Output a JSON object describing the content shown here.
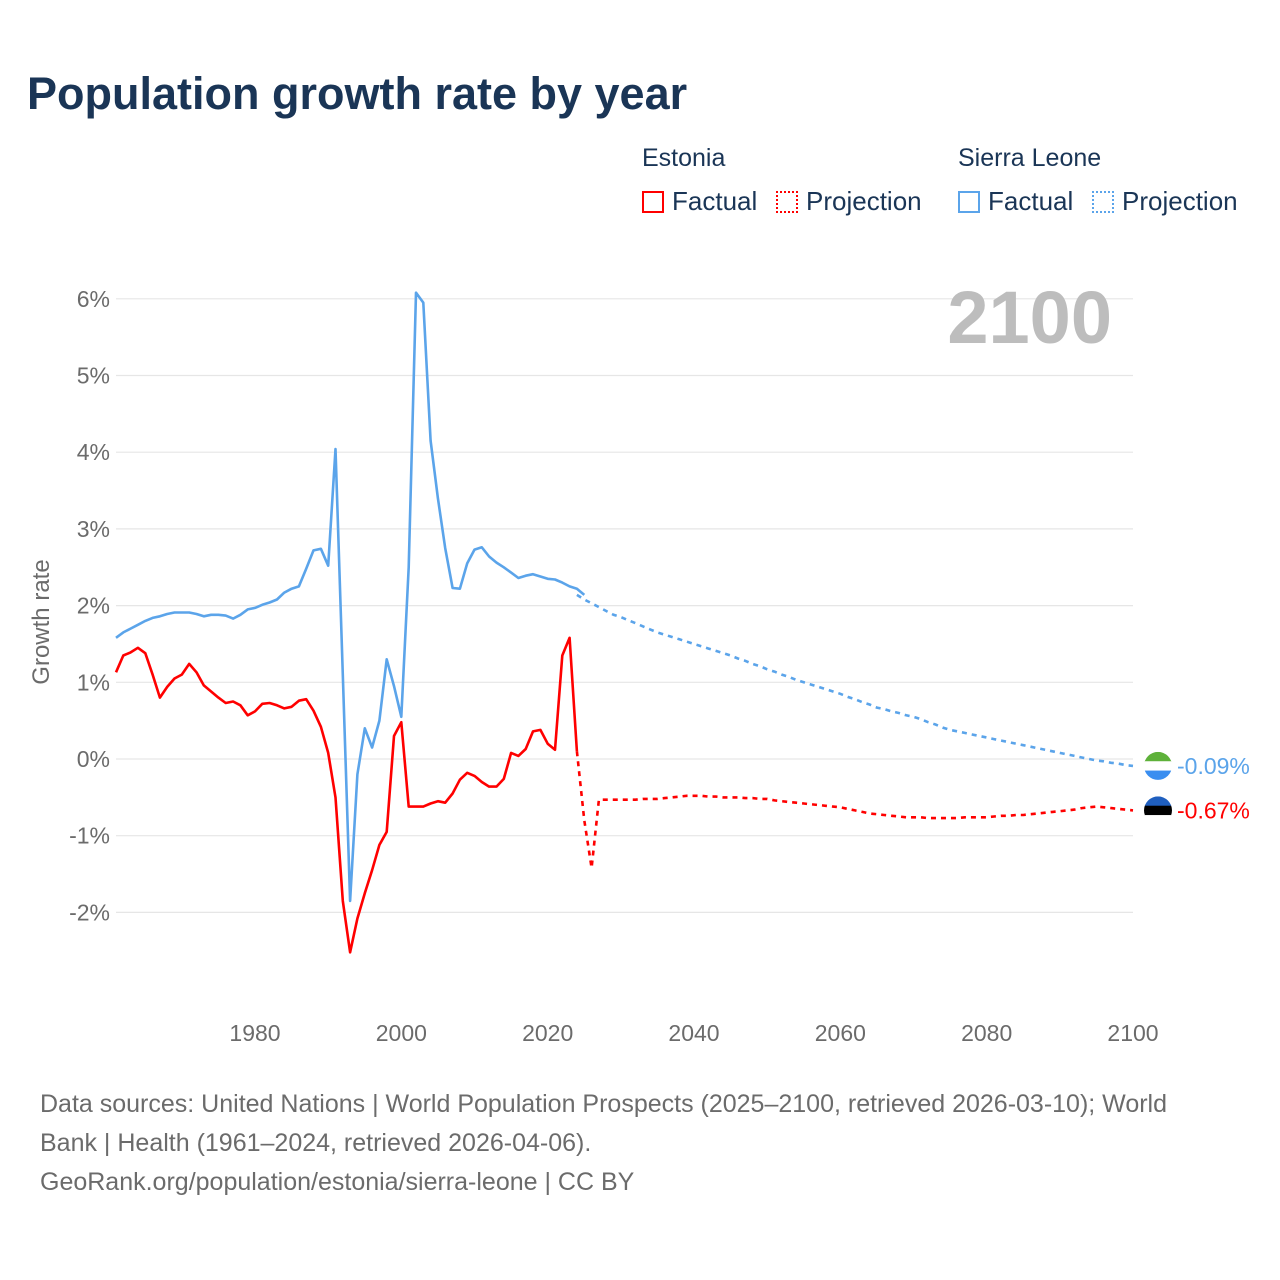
{
  "title": "Population growth rate by year",
  "legend": {
    "groups": [
      {
        "name": "Estonia",
        "color": "#ff0000",
        "factual_label": "Factual",
        "projection_label": "Projection"
      },
      {
        "name": "Sierra Leone",
        "color": "#5ba4ea",
        "factual_label": "Factual",
        "projection_label": "Projection"
      }
    ]
  },
  "chart_data": {
    "type": "line",
    "title": "Population growth rate by year",
    "ylabel": "Growth rate",
    "xlabel": "",
    "current_year_label": "2100",
    "xlim": [
      1961,
      2100
    ],
    "ylim": [
      -3,
      6.5
    ],
    "x_ticks": [
      1980,
      2000,
      2020,
      2040,
      2060,
      2080,
      2100
    ],
    "x_tick_labels": [
      "1980",
      "2000",
      "2020",
      "2040",
      "2060",
      "2080",
      "2100"
    ],
    "y_ticks": [
      -2,
      -1,
      0,
      1,
      2,
      3,
      4,
      5,
      6
    ],
    "y_tick_labels": [
      "-2%",
      "-1%",
      "0%",
      "1%",
      "2%",
      "3%",
      "4%",
      "5%",
      "6%"
    ],
    "grid": true,
    "series": [
      {
        "name": "Sierra Leone",
        "color": "#5ba4ea",
        "end_label": "-0.09%",
        "flag": [
          "#5eb13a",
          "#ffffff",
          "#3a8ef0"
        ],
        "factual_start": 1961,
        "factual": [
          1.58,
          1.65,
          1.7,
          1.75,
          1.8,
          1.84,
          1.86,
          1.89,
          1.91,
          1.91,
          1.91,
          1.89,
          1.86,
          1.88,
          1.88,
          1.87,
          1.83,
          1.88,
          1.95,
          1.97,
          2.01,
          2.04,
          2.08,
          2.17,
          2.22,
          2.25,
          2.48,
          2.72,
          2.74,
          2.52,
          4.04,
          1.1,
          -1.85,
          -0.2,
          0.4,
          0.15,
          0.5,
          1.3,
          0.95,
          0.55,
          2.5,
          6.08,
          5.95,
          4.15,
          3.4,
          2.75,
          2.23,
          2.22,
          2.55,
          2.73,
          2.76,
          2.64,
          2.56,
          2.5,
          2.43,
          2.36,
          2.39,
          2.41,
          2.38,
          2.35,
          2.34,
          2.3,
          2.25,
          2.22,
          2.14
        ],
        "projection_start": 2024,
        "projection": [
          2.14,
          2.08,
          2.03,
          1.98,
          1.93,
          1.88,
          1.85,
          1.81,
          1.77,
          1.73,
          1.69,
          1.65,
          1.62,
          1.59,
          1.56,
          1.53,
          1.5,
          1.47,
          1.44,
          1.41,
          1.38,
          1.35,
          1.31,
          1.28,
          1.24,
          1.21,
          1.17,
          1.14,
          1.1,
          1.07,
          1.03,
          1.0,
          0.97,
          0.94,
          0.91,
          0.88,
          0.85,
          0.81,
          0.78,
          0.74,
          0.71,
          0.67,
          0.65,
          0.62,
          0.6,
          0.57,
          0.55,
          0.52,
          0.48,
          0.45,
          0.41,
          0.38,
          0.36,
          0.34,
          0.32,
          0.3,
          0.28,
          0.26,
          0.24,
          0.22,
          0.2,
          0.18,
          0.16,
          0.14,
          0.12,
          0.1,
          0.08,
          0.06,
          0.04,
          0.02,
          0.0,
          -0.02,
          -0.03,
          -0.05,
          -0.06,
          -0.08,
          -0.09
        ]
      },
      {
        "name": "Estonia",
        "color": "#ff0000",
        "end_label": "-0.67%",
        "flag": [
          "#1f5fbf",
          "#000000",
          "#ffffff"
        ],
        "factual_start": 1961,
        "factual": [
          1.13,
          1.35,
          1.39,
          1.45,
          1.38,
          1.1,
          0.8,
          0.94,
          1.05,
          1.1,
          1.24,
          1.13,
          0.96,
          0.88,
          0.8,
          0.73,
          0.75,
          0.7,
          0.57,
          0.62,
          0.72,
          0.73,
          0.7,
          0.66,
          0.68,
          0.76,
          0.78,
          0.63,
          0.42,
          0.08,
          -0.5,
          -1.85,
          -2.52,
          -2.08,
          -1.75,
          -1.45,
          -1.12,
          -0.95,
          0.3,
          0.48,
          -0.62,
          -0.62,
          -0.62,
          -0.58,
          -0.55,
          -0.57,
          -0.45,
          -0.27,
          -0.18,
          -0.22,
          -0.3,
          -0.36,
          -0.36,
          -0.26,
          0.08,
          0.04,
          0.13,
          0.36,
          0.38,
          0.2,
          0.12,
          1.35,
          1.58,
          0.1
        ],
        "projection_start": 2024,
        "projection": [
          0.1,
          -0.8,
          -1.42,
          -0.53,
          -0.53,
          -0.53,
          -0.53,
          -0.53,
          -0.53,
          -0.52,
          -0.52,
          -0.52,
          -0.51,
          -0.5,
          -0.49,
          -0.48,
          -0.48,
          -0.48,
          -0.49,
          -0.49,
          -0.5,
          -0.5,
          -0.5,
          -0.51,
          -0.51,
          -0.52,
          -0.52,
          -0.54,
          -0.55,
          -0.56,
          -0.57,
          -0.58,
          -0.59,
          -0.6,
          -0.61,
          -0.62,
          -0.63,
          -0.65,
          -0.67,
          -0.69,
          -0.71,
          -0.72,
          -0.73,
          -0.74,
          -0.75,
          -0.76,
          -0.76,
          -0.76,
          -0.77,
          -0.77,
          -0.77,
          -0.77,
          -0.77,
          -0.76,
          -0.76,
          -0.76,
          -0.76,
          -0.75,
          -0.74,
          -0.74,
          -0.73,
          -0.73,
          -0.72,
          -0.71,
          -0.7,
          -0.69,
          -0.68,
          -0.67,
          -0.66,
          -0.64,
          -0.63,
          -0.62,
          -0.63,
          -0.64,
          -0.65,
          -0.66,
          -0.67
        ]
      }
    ]
  },
  "footer": {
    "line1": "Data sources: United Nations | World Population Prospects (2025–2100, retrieved 2026-03-10); World",
    "line2": "Bank | Health (1961–2024, retrieved 2026-04-06).",
    "line3": "GeoRank.org/population/estonia/sierra-leone | CC BY"
  }
}
